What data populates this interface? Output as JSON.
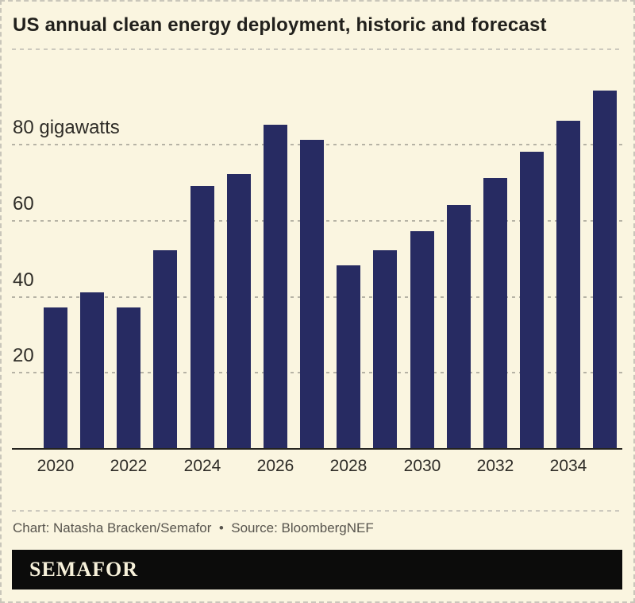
{
  "header": {
    "title": "US annual clean energy deployment, historic and forecast"
  },
  "chart_data": {
    "type": "bar",
    "title": "US annual clean energy deployment, historic and forecast",
    "unit": "gigawatts",
    "x": [
      "2020",
      "2021",
      "2022",
      "2023",
      "2024",
      "2025",
      "2026",
      "2027",
      "2028",
      "2029",
      "2030",
      "2031",
      "2032",
      "2033",
      "2034",
      "2035"
    ],
    "values": [
      37,
      41,
      37,
      52,
      69,
      72,
      85,
      81,
      48,
      52,
      57,
      64,
      71,
      78,
      86,
      94
    ],
    "x_tick_labels": [
      "2020",
      "2022",
      "2024",
      "2026",
      "2028",
      "2030",
      "2032",
      "2034"
    ],
    "y_ticks": [
      20,
      40,
      60,
      80
    ],
    "y_tick_labels": [
      "20",
      "40",
      "60",
      "80 gigawatts"
    ],
    "ylim": [
      0,
      100
    ],
    "grid": "horizontal-dashed",
    "legend": "none",
    "bar_color": "#272b62"
  },
  "footer": {
    "credit": "Chart: Natasha Bracken/Semafor  •  Source: BloombergNEF"
  },
  "logo": {
    "text": "SEMAFOR"
  },
  "colors": {
    "background": "#faf5e0",
    "bar": "#272b62",
    "axis_line": "#25241f",
    "gridline": "#b6b3a5",
    "separator": "#ccc9be",
    "title_text": "#21201c",
    "tick_text": "#2e2c27",
    "credit_text": "#57544d",
    "logo_bg": "#0c0c0b",
    "logo_text": "#f7f1da"
  }
}
